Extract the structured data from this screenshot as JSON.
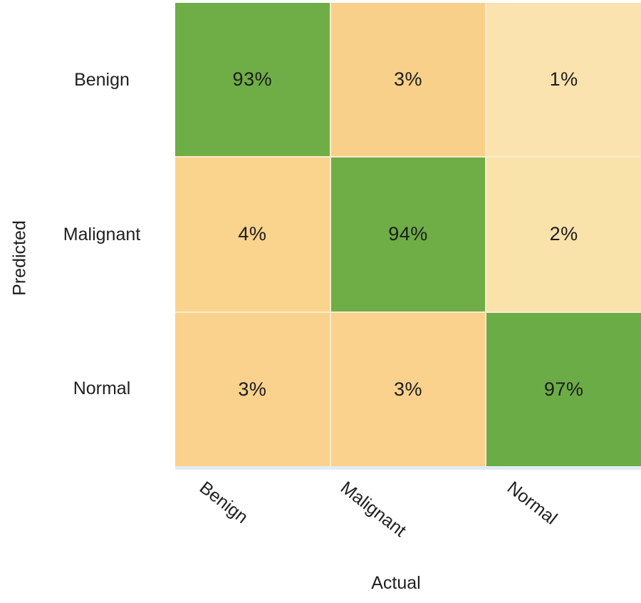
{
  "chart_data": {
    "type": "heatmap",
    "title": "",
    "xlabel": "Actual",
    "ylabel": "Predicted",
    "x_categories": [
      "Benign",
      "Malignant",
      "Normal"
    ],
    "y_categories": [
      "Benign",
      "Malignant",
      "Normal"
    ],
    "values_percent": [
      [
        93,
        3,
        1
      ],
      [
        4,
        94,
        2
      ],
      [
        3,
        3,
        97
      ]
    ],
    "cell_labels": [
      [
        "93%",
        "3%",
        "1%"
      ],
      [
        "4%",
        "94%",
        "2%"
      ],
      [
        "3%",
        "3%",
        "97%"
      ]
    ],
    "cell_colors": [
      [
        "#6FAD47",
        "#F9D08A",
        "#FAE3AF"
      ],
      [
        "#FAD38D",
        "#6FAD47",
        "#FAE2AB"
      ],
      [
        "#FAD28D",
        "#FAD28D",
        "#6CAC47"
      ]
    ],
    "layout_hints": {
      "legend": "none",
      "grid": "subtle pale gaps between cells",
      "x_tick_rotation_deg": 38
    },
    "colors": {
      "diagonal_high": "#6FAD47",
      "off_diagonal_mid": "#FAD28D",
      "off_diagonal_low": "#FAE2AD",
      "text": "#1F1F1F",
      "gap_line": "#F9ECCA",
      "baseline_strip": "#E2EBF4"
    }
  }
}
